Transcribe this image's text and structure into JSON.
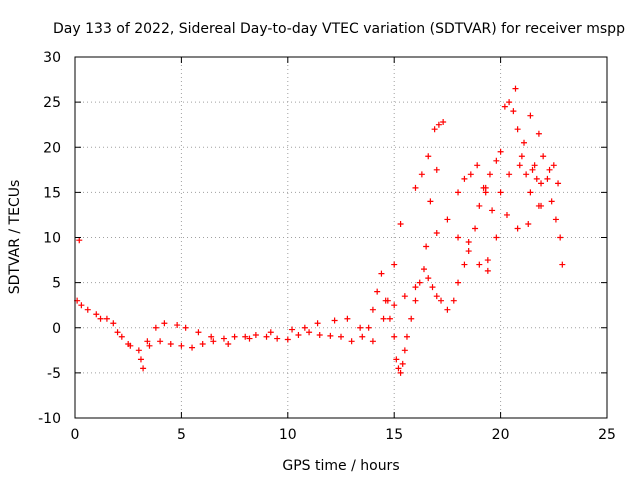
{
  "chart_data": {
    "type": "scatter",
    "title": "Day 133 of 2022, Sidereal Day-to-day VTEC variation (SDTVAR) for receiver mspp",
    "xlabel": "GPS time / hours",
    "ylabel": "SDTVAR / TECUs",
    "xlim": [
      0,
      25
    ],
    "ylim": [
      -10,
      30
    ],
    "xticks": [
      "0",
      "5",
      "10",
      "15",
      "20",
      "25"
    ],
    "yticks": [
      "-10",
      "-5",
      "0",
      "5",
      "10",
      "15",
      "20",
      "25",
      "30"
    ],
    "grid": true,
    "marker": "+",
    "series": [
      {
        "name": "SDTVAR",
        "color": "#ff0000",
        "x": [
          0.2,
          0.1,
          0.3,
          0.6,
          1.0,
          1.5,
          2.0,
          2.5,
          3.0,
          3.2,
          3.1,
          3.5,
          4.0,
          4.5,
          5.0,
          5.5,
          6.0,
          6.5,
          7.0,
          7.5,
          8.0,
          8.5,
          9.0,
          9.5,
          10.0,
          10.5,
          11.0,
          11.5,
          12.0,
          12.5,
          13.0,
          13.5,
          13.8,
          14.0,
          14.2,
          14.4,
          14.6,
          14.8,
          15.0,
          15.1,
          15.2,
          15.3,
          15.4,
          15.5,
          15.6,
          15.8,
          16.0,
          16.2,
          16.4,
          16.6,
          16.8,
          17.0,
          17.2,
          17.5,
          17.8,
          18.0,
          18.3,
          18.5,
          18.8,
          19.0,
          19.3,
          19.5,
          19.8,
          20.0,
          20.2,
          20.4,
          20.6,
          20.8,
          21.0,
          21.2,
          21.4,
          21.6,
          21.8,
          22.0,
          22.2,
          22.4,
          22.6,
          22.8,
          22.9,
          1.2,
          1.8,
          2.2,
          2.6,
          3.4,
          3.8,
          4.2,
          4.8,
          5.2,
          5.8,
          6.4,
          7.2,
          8.2,
          9.2,
          10.2,
          10.8,
          11.4,
          12.2,
          12.8,
          13.4,
          14.0,
          14.5,
          15.0,
          15.5,
          16.0,
          16.5,
          17.0,
          17.5,
          18.0,
          18.5,
          19.0,
          19.4,
          19.8,
          20.3,
          20.8,
          21.3,
          21.8,
          22.3,
          22.7,
          16.0,
          16.3,
          16.6,
          16.9,
          17.1,
          17.3,
          18.0,
          18.3,
          18.6,
          18.9,
          19.2,
          19.6,
          20.0,
          20.4,
          20.9,
          21.5,
          21.9,
          22.5,
          14.7,
          15.0,
          15.3,
          16.7,
          17.0,
          19.3,
          19.4,
          20.7,
          21.1,
          21.4,
          21.7,
          21.9
        ],
        "y": [
          9.7,
          3.0,
          2.5,
          2.0,
          1.5,
          1.0,
          -0.5,
          -1.8,
          -2.5,
          -4.5,
          -3.5,
          -2.0,
          -1.5,
          -1.8,
          -2.0,
          -2.2,
          -1.8,
          -1.5,
          -1.2,
          -1.0,
          -1.0,
          -0.8,
          -1.0,
          -1.2,
          -1.3,
          -0.8,
          -0.5,
          -0.8,
          -0.9,
          -1.0,
          -1.5,
          -1.0,
          0.0,
          2.0,
          4.0,
          6.0,
          3.0,
          1.0,
          -1.0,
          -3.5,
          -4.5,
          -5.0,
          -4.0,
          -2.5,
          -1.0,
          1.0,
          3.0,
          5.0,
          6.5,
          5.5,
          4.5,
          3.5,
          3.0,
          2.0,
          3.0,
          5.0,
          7.0,
          9.5,
          11.0,
          13.5,
          15.0,
          17.0,
          18.5,
          19.5,
          24.5,
          25.0,
          24.0,
          22.0,
          19.0,
          17.0,
          15.0,
          18.0,
          21.5,
          19.0,
          16.5,
          14.0,
          12.0,
          10.0,
          7.0,
          1.0,
          0.5,
          -1.0,
          -2.0,
          -1.5,
          0.0,
          0.5,
          0.3,
          0.0,
          -0.5,
          -1.0,
          -1.8,
          -1.2,
          -0.5,
          -0.2,
          0.0,
          0.5,
          0.8,
          1.0,
          0.0,
          -1.5,
          1.0,
          2.5,
          3.5,
          4.5,
          9.0,
          10.5,
          12.0,
          10.0,
          8.5,
          7.0,
          7.5,
          10.0,
          12.5,
          11.0,
          11.5,
          13.5,
          17.5,
          16.0,
          15.5,
          17.0,
          19.0,
          22.0,
          22.5,
          22.8,
          15.0,
          16.5,
          17.0,
          18.0,
          15.5,
          13.0,
          15.0,
          17.0,
          18.0,
          17.5,
          16.0,
          18.0,
          3.0,
          7.0,
          11.5,
          14.0,
          17.5,
          15.5,
          6.3,
          26.5,
          20.5,
          23.5,
          16.5,
          13.5
        ]
      }
    ]
  }
}
